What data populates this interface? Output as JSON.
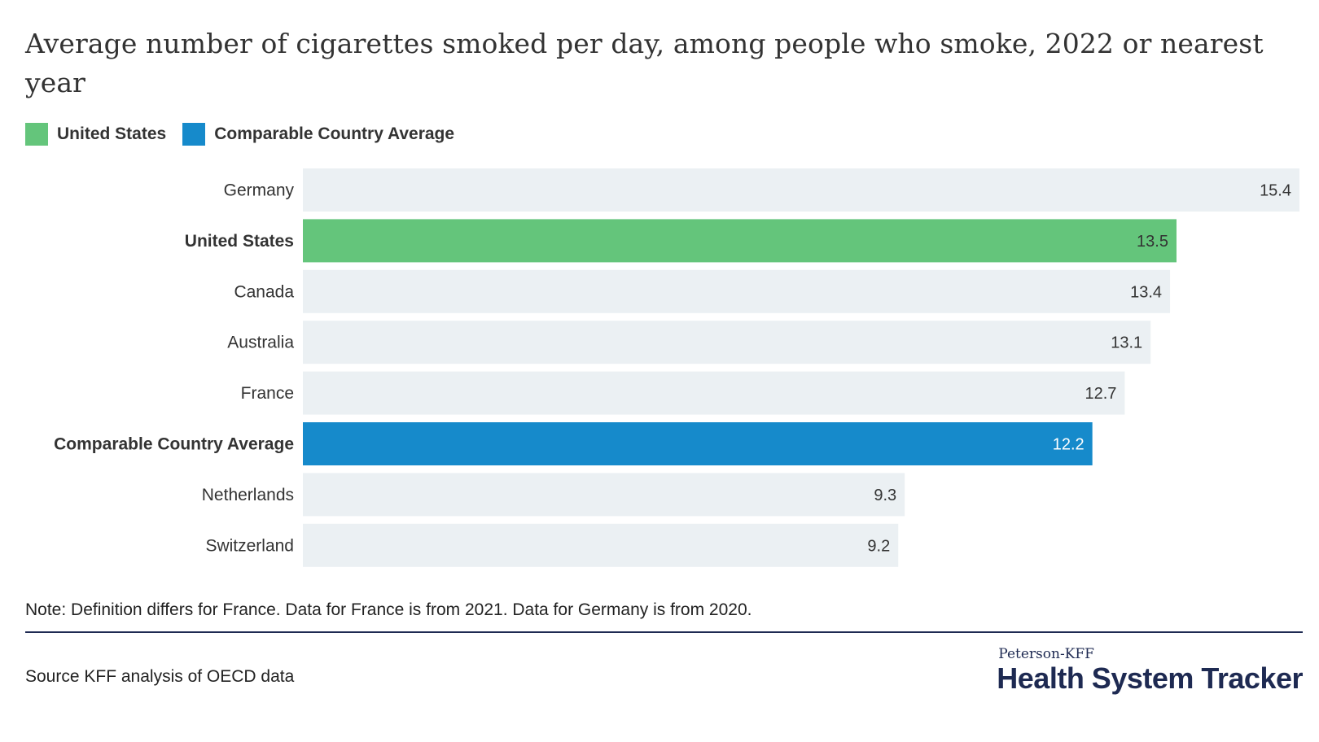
{
  "title": "Average number of cigarettes smoked per day, among people who smoke, 2022 or nearest year",
  "legend": [
    {
      "label": "United States",
      "color": "#64c57b"
    },
    {
      "label": "Comparable Country Average",
      "color": "#168acb"
    }
  ],
  "colors": {
    "default_bar": "#ebf0f3",
    "us_bar": "#64c57b",
    "average_bar": "#168acb"
  },
  "chart_data": {
    "type": "bar",
    "orientation": "horizontal",
    "title": "Average number of cigarettes smoked per day, among people who smoke, 2022 or nearest year",
    "xlim": [
      0,
      15.4
    ],
    "grid": false,
    "legend_position": "top-left",
    "categories": [
      "Germany",
      "United States",
      "Canada",
      "Australia",
      "France",
      "Comparable Country Average",
      "Netherlands",
      "Switzerland"
    ],
    "values": [
      15.4,
      13.5,
      13.4,
      13.1,
      12.7,
      12.2,
      9.3,
      9.2
    ],
    "highlight": [
      "default",
      "us",
      "default",
      "default",
      "default",
      "average",
      "default",
      "default"
    ]
  },
  "note": "Note: Definition differs for France. Data for France is from 2021. Data for Germany is from 2020.",
  "source": "Source KFF analysis of OECD data",
  "logo": {
    "top": "Peterson-KFF",
    "main": "Health System Tracker"
  }
}
